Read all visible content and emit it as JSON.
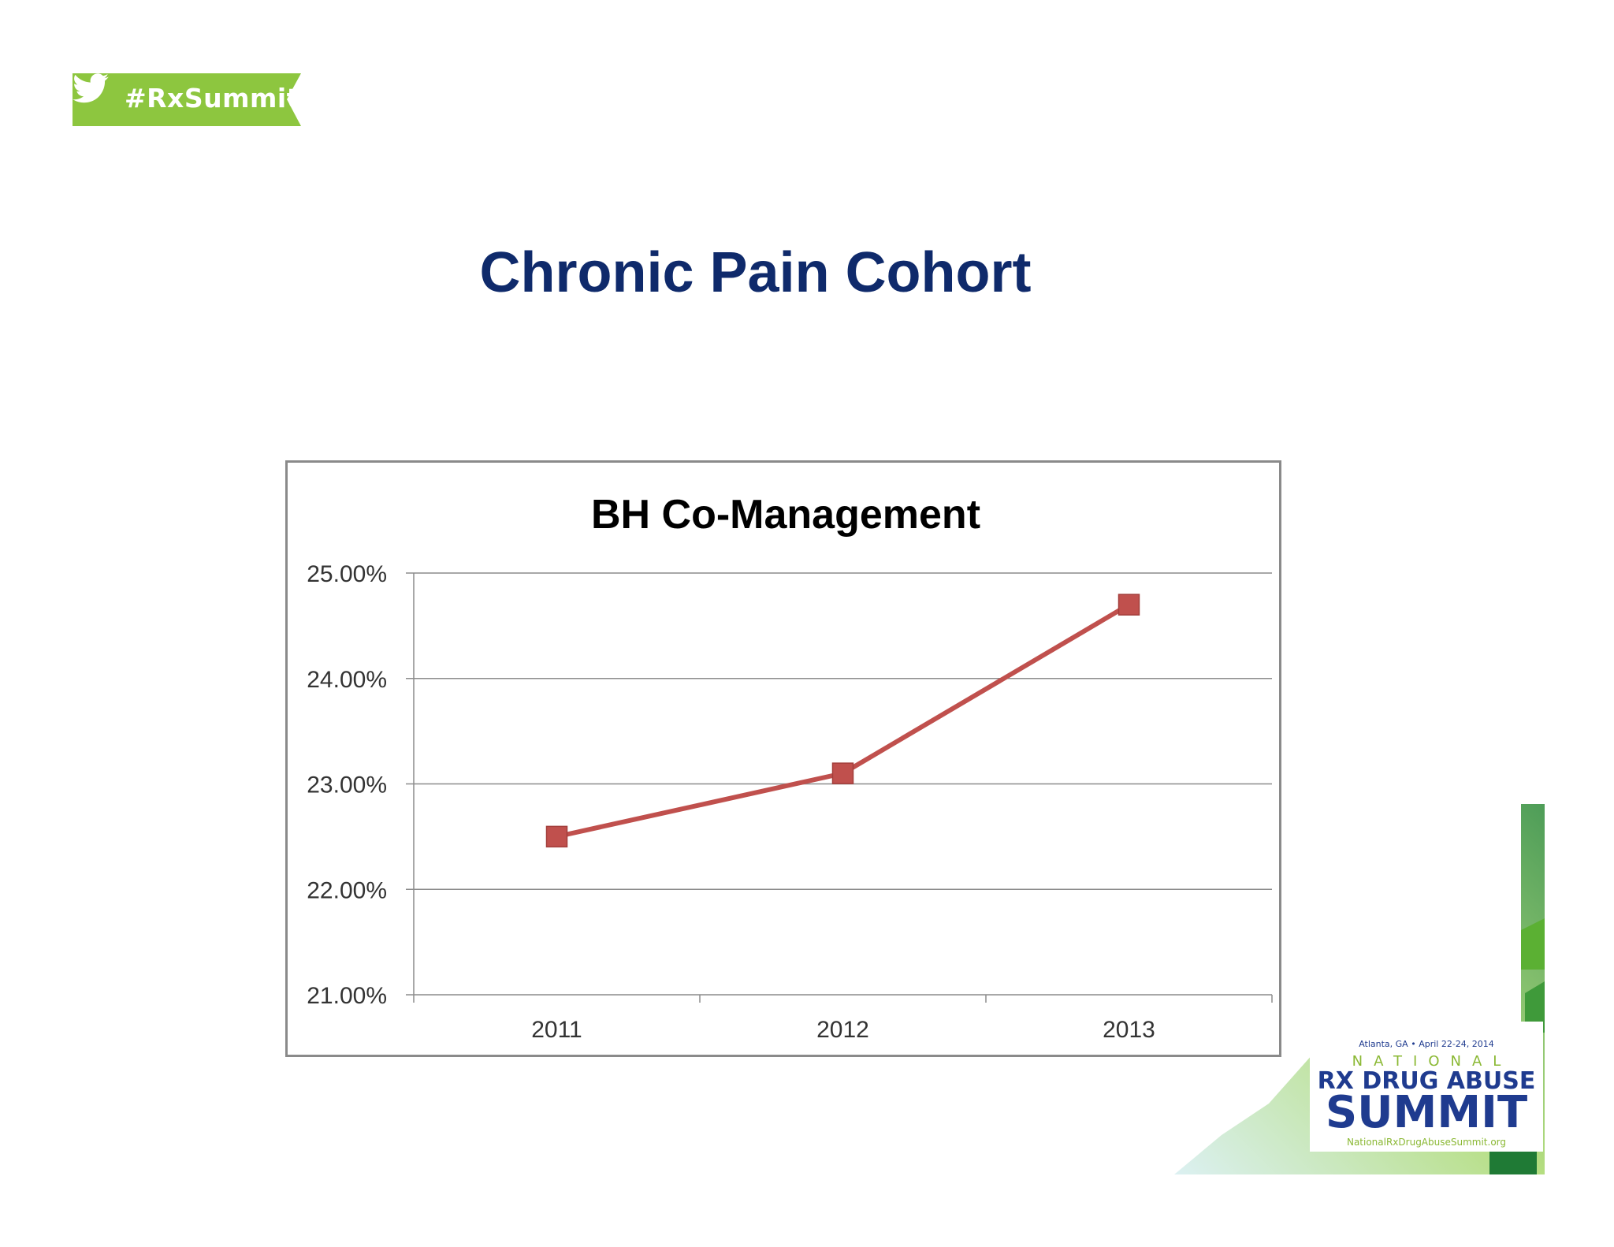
{
  "banner": {
    "text": "#RxSummit",
    "icon": "twitter-bird-icon",
    "color": "#8dc63f"
  },
  "slide": {
    "title": "Chronic Pain Cohort"
  },
  "chart_data": {
    "type": "line",
    "title": "BH Co-Management",
    "categories": [
      "2011",
      "2012",
      "2013"
    ],
    "series": [
      {
        "values": [
          22.5,
          23.1,
          24.7
        ],
        "color": "#c0504d",
        "marker": "square"
      }
    ],
    "ylim": [
      21,
      25
    ],
    "yticks": [
      25,
      24,
      23,
      22,
      21
    ],
    "ytick_labels": [
      "25.00%",
      "24.00%",
      "23.00%",
      "22.00%",
      "21.00%"
    ],
    "xlabel": "",
    "ylabel": "",
    "grid": true,
    "legend": "none"
  },
  "logo": {
    "line1": "Atlanta, GA • April 22-24, 2014",
    "line2": "NATIONAL",
    "line3": "RX DRUG ABUSE",
    "line4": "SUMMIT",
    "line5": "NationalRxDrugAbuseSummit.org",
    "primary_color": "#1f3b8f",
    "accent_color": "#8ab833"
  }
}
